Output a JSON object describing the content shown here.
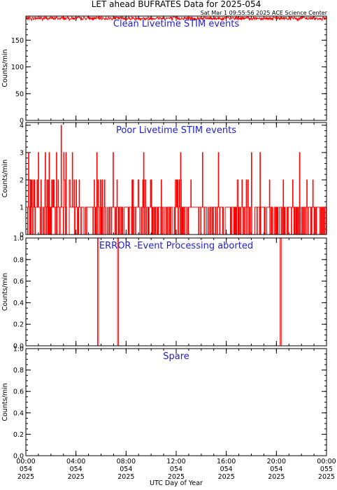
{
  "title": "LET ahead BUFRATES Data for 2025-054",
  "subtitle": "Sat Mar  1 09:55:56 2025 ACE Science Center",
  "xlabel": "UTC Day of Year",
  "x_ticks": [
    {
      "time": "00:00",
      "doy": "054",
      "year": "2025"
    },
    {
      "time": "04:00",
      "doy": "054",
      "year": "2025"
    },
    {
      "time": "08:00",
      "doy": "054",
      "year": "2025"
    },
    {
      "time": "12:00",
      "doy": "054",
      "year": "2025"
    },
    {
      "time": "16:00",
      "doy": "054",
      "year": "2025"
    },
    {
      "time": "20:00",
      "doy": "054",
      "year": "2025"
    },
    {
      "time": "00:00",
      "doy": "055",
      "year": "2025"
    }
  ],
  "colors": {
    "data": "#ff0000",
    "panel_title": "#1f1fd0",
    "axes": "#000000"
  },
  "chart_data": [
    {
      "type": "line",
      "title": "Clean Livetime STIM events",
      "ylabel": "Counts/min",
      "xlim_hours": [
        0,
        24
      ],
      "ylim": [
        0,
        195
      ],
      "yticks": [
        0,
        50,
        100,
        150
      ],
      "series": [
        {
          "description": "nearly constant",
          "approx_value": 191,
          "range": [
            187,
            193
          ],
          "x_hours": [
            0,
            24
          ]
        }
      ]
    },
    {
      "type": "line",
      "title": "Poor Livetime STIM events",
      "ylabel": "Counts/min",
      "xlim_hours": [
        0,
        24
      ],
      "ylim": [
        0,
        4.1
      ],
      "yticks": [
        0,
        1,
        2,
        3,
        4
      ],
      "series": [
        {
          "description": "integer counts 0-2 with occasional spikes",
          "spikes_hours": {
            "4": [
              2.82
            ],
            "3": [
              0.2,
              0.98,
              1.55,
              1.85,
              2.45,
              3.02,
              3.2,
              3.7,
              5.65,
              6.95,
              9.4,
              12.35,
              14.1,
              15.35,
              18.0,
              18.7,
              21.85
            ]
          }
        }
      ]
    },
    {
      "type": "line",
      "title": "ERROR -Event Processing aborted",
      "ylabel": "Counts/min",
      "xlim_hours": [
        0,
        24
      ],
      "ylim": [
        0,
        1.0
      ],
      "yticks": [
        0.0,
        0.2,
        0.4,
        0.6,
        0.8,
        1.0
      ],
      "series": [
        {
          "baseline": 0,
          "spikes": [
            {
              "x_hours": 5.72,
              "value": 1
            },
            {
              "x_hours": 7.32,
              "value": 1
            },
            {
              "x_hours": 20.3,
              "value": 1
            }
          ]
        }
      ]
    },
    {
      "type": "line",
      "title": "Spare",
      "ylabel": "Counts/min",
      "xlim_hours": [
        0,
        24
      ],
      "ylim": [
        0,
        1.0
      ],
      "yticks": [
        0.0,
        0.2,
        0.4,
        0.6,
        0.8,
        1.0
      ],
      "series": [
        {
          "baseline": 0
        }
      ]
    }
  ]
}
